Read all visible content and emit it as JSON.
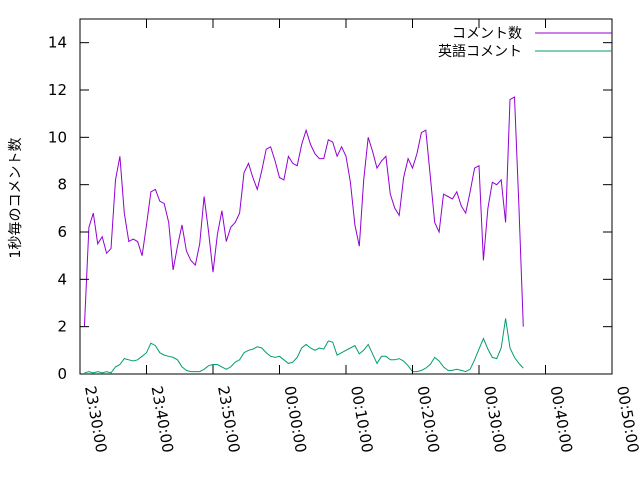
{
  "chart_data": {
    "type": "line",
    "title": "",
    "xlabel": "",
    "ylabel": "1秒毎のコメント数",
    "x_start": "23:30:00",
    "x_end": "00:50:00",
    "x_ticks": [
      "23:30:00",
      "23:40:00",
      "23:50:00",
      "00:00:00",
      "00:10:00",
      "00:20:00",
      "00:30:00",
      "00:40:00",
      "00:50:00"
    ],
    "ylim": [
      0,
      15
    ],
    "y_ticks": [
      0,
      2,
      4,
      6,
      8,
      10,
      12,
      14
    ],
    "grid": false,
    "legend_position": "top-right",
    "series": [
      {
        "name": "コメント数",
        "color": "#9400d3",
        "points": [
          [
            "23:30:40",
            2.0
          ],
          [
            "23:31:20",
            6.2
          ],
          [
            "23:32:00",
            6.8
          ],
          [
            "23:32:40",
            5.5
          ],
          [
            "23:33:20",
            5.8
          ],
          [
            "23:34:00",
            5.1
          ],
          [
            "23:34:40",
            5.3
          ],
          [
            "23:35:20",
            8.2
          ],
          [
            "23:36:00",
            9.2
          ],
          [
            "23:36:40",
            6.8
          ],
          [
            "23:37:20",
            5.6
          ],
          [
            "23:38:00",
            5.7
          ],
          [
            "23:38:40",
            5.6
          ],
          [
            "23:39:20",
            5.0
          ],
          [
            "23:40:00",
            6.3
          ],
          [
            "23:40:40",
            7.7
          ],
          [
            "23:41:20",
            7.8
          ],
          [
            "23:42:00",
            7.3
          ],
          [
            "23:42:40",
            7.2
          ],
          [
            "23:43:20",
            6.4
          ],
          [
            "23:44:00",
            4.4
          ],
          [
            "23:44:40",
            5.4
          ],
          [
            "23:45:20",
            6.3
          ],
          [
            "23:46:00",
            5.2
          ],
          [
            "23:46:40",
            4.8
          ],
          [
            "23:47:20",
            4.6
          ],
          [
            "23:48:00",
            5.5
          ],
          [
            "23:48:40",
            7.5
          ],
          [
            "23:49:20",
            6.0
          ],
          [
            "23:50:00",
            4.3
          ],
          [
            "23:50:40",
            5.9
          ],
          [
            "23:51:20",
            6.9
          ],
          [
            "23:52:00",
            5.6
          ],
          [
            "23:52:40",
            6.2
          ],
          [
            "23:53:20",
            6.4
          ],
          [
            "23:54:00",
            6.8
          ],
          [
            "23:54:40",
            8.5
          ],
          [
            "23:55:20",
            8.9
          ],
          [
            "23:56:00",
            8.3
          ],
          [
            "23:56:40",
            7.8
          ],
          [
            "23:57:20",
            8.6
          ],
          [
            "23:58:00",
            9.5
          ],
          [
            "23:58:40",
            9.6
          ],
          [
            "23:59:20",
            9.0
          ],
          [
            "00:00:00",
            8.3
          ],
          [
            "00:00:40",
            8.2
          ],
          [
            "00:01:20",
            9.2
          ],
          [
            "00:02:00",
            8.9
          ],
          [
            "00:02:40",
            8.8
          ],
          [
            "00:03:20",
            9.7
          ],
          [
            "00:04:00",
            10.3
          ],
          [
            "00:04:40",
            9.7
          ],
          [
            "00:05:20",
            9.3
          ],
          [
            "00:06:00",
            9.1
          ],
          [
            "00:06:40",
            9.1
          ],
          [
            "00:07:20",
            9.9
          ],
          [
            "00:08:00",
            9.8
          ],
          [
            "00:08:40",
            9.2
          ],
          [
            "00:09:20",
            9.6
          ],
          [
            "00:10:00",
            9.2
          ],
          [
            "00:10:40",
            8.1
          ],
          [
            "00:11:20",
            6.3
          ],
          [
            "00:12:00",
            5.4
          ],
          [
            "00:12:40",
            8.2
          ],
          [
            "00:13:20",
            10.0
          ],
          [
            "00:14:00",
            9.4
          ],
          [
            "00:14:40",
            8.7
          ],
          [
            "00:15:20",
            9.0
          ],
          [
            "00:16:00",
            9.2
          ],
          [
            "00:16:40",
            7.6
          ],
          [
            "00:17:20",
            7.0
          ],
          [
            "00:18:00",
            6.7
          ],
          [
            "00:18:40",
            8.3
          ],
          [
            "00:19:20",
            9.1
          ],
          [
            "00:20:00",
            8.7
          ],
          [
            "00:20:40",
            9.3
          ],
          [
            "00:21:20",
            10.2
          ],
          [
            "00:22:00",
            10.3
          ],
          [
            "00:22:40",
            8.4
          ],
          [
            "00:23:20",
            6.4
          ],
          [
            "00:24:00",
            6.0
          ],
          [
            "00:24:40",
            7.6
          ],
          [
            "00:25:20",
            7.5
          ],
          [
            "00:26:00",
            7.4
          ],
          [
            "00:26:40",
            7.7
          ],
          [
            "00:27:20",
            7.1
          ],
          [
            "00:28:00",
            6.8
          ],
          [
            "00:28:40",
            7.7
          ],
          [
            "00:29:20",
            8.7
          ],
          [
            "00:30:00",
            8.8
          ],
          [
            "00:30:40",
            4.8
          ],
          [
            "00:31:20",
            7.0
          ],
          [
            "00:32:00",
            8.1
          ],
          [
            "00:32:40",
            8.0
          ],
          [
            "00:33:20",
            8.2
          ],
          [
            "00:34:00",
            6.4
          ],
          [
            "00:34:40",
            11.6
          ],
          [
            "00:35:20",
            11.7
          ],
          [
            "00:36:00",
            7.1
          ],
          [
            "00:36:40",
            2.0
          ]
        ]
      },
      {
        "name": "英語コメント",
        "color": "#009e73",
        "points": [
          [
            "23:30:40",
            0.05
          ],
          [
            "23:31:20",
            0.1
          ],
          [
            "23:32:00",
            0.05
          ],
          [
            "23:32:40",
            0.1
          ],
          [
            "23:33:20",
            0.05
          ],
          [
            "23:34:00",
            0.1
          ],
          [
            "23:34:40",
            0.05
          ],
          [
            "23:35:20",
            0.3
          ],
          [
            "23:36:00",
            0.4
          ],
          [
            "23:36:40",
            0.65
          ],
          [
            "23:37:20",
            0.6
          ],
          [
            "23:38:00",
            0.55
          ],
          [
            "23:38:40",
            0.6
          ],
          [
            "23:39:20",
            0.75
          ],
          [
            "23:40:00",
            0.9
          ],
          [
            "23:40:40",
            1.3
          ],
          [
            "23:41:20",
            1.2
          ],
          [
            "23:42:00",
            0.9
          ],
          [
            "23:42:40",
            0.8
          ],
          [
            "23:43:20",
            0.75
          ],
          [
            "23:44:00",
            0.7
          ],
          [
            "23:44:40",
            0.6
          ],
          [
            "23:45:20",
            0.3
          ],
          [
            "23:46:00",
            0.15
          ],
          [
            "23:46:40",
            0.1
          ],
          [
            "23:47:20",
            0.1
          ],
          [
            "23:48:00",
            0.1
          ],
          [
            "23:48:40",
            0.2
          ],
          [
            "23:49:20",
            0.35
          ],
          [
            "23:50:00",
            0.4
          ],
          [
            "23:50:40",
            0.4
          ],
          [
            "23:51:20",
            0.3
          ],
          [
            "23:52:00",
            0.2
          ],
          [
            "23:52:40",
            0.3
          ],
          [
            "23:53:20",
            0.5
          ],
          [
            "23:54:00",
            0.6
          ],
          [
            "23:54:40",
            0.9
          ],
          [
            "23:55:20",
            1.0
          ],
          [
            "23:56:00",
            1.05
          ],
          [
            "23:56:40",
            1.15
          ],
          [
            "23:57:20",
            1.1
          ],
          [
            "23:58:00",
            0.9
          ],
          [
            "23:58:40",
            0.75
          ],
          [
            "23:59:20",
            0.7
          ],
          [
            "00:00:00",
            0.75
          ],
          [
            "00:00:40",
            0.6
          ],
          [
            "00:01:20",
            0.45
          ],
          [
            "00:02:00",
            0.5
          ],
          [
            "00:02:40",
            0.7
          ],
          [
            "00:03:20",
            1.1
          ],
          [
            "00:04:00",
            1.25
          ],
          [
            "00:04:40",
            1.1
          ],
          [
            "00:05:20",
            1.0
          ],
          [
            "00:06:00",
            1.1
          ],
          [
            "00:06:40",
            1.05
          ],
          [
            "00:07:20",
            1.4
          ],
          [
            "00:08:00",
            1.35
          ],
          [
            "00:08:40",
            0.8
          ],
          [
            "00:09:20",
            0.9
          ],
          [
            "00:10:00",
            1.0
          ],
          [
            "00:10:40",
            1.1
          ],
          [
            "00:11:20",
            1.2
          ],
          [
            "00:12:00",
            0.85
          ],
          [
            "00:12:40",
            1.0
          ],
          [
            "00:13:20",
            1.25
          ],
          [
            "00:14:00",
            0.85
          ],
          [
            "00:14:40",
            0.45
          ],
          [
            "00:15:20",
            0.75
          ],
          [
            "00:16:00",
            0.75
          ],
          [
            "00:16:40",
            0.6
          ],
          [
            "00:17:20",
            0.6
          ],
          [
            "00:18:00",
            0.65
          ],
          [
            "00:18:40",
            0.55
          ],
          [
            "00:19:20",
            0.35
          ],
          [
            "00:20:00",
            0.1
          ],
          [
            "00:20:40",
            0.1
          ],
          [
            "00:21:20",
            0.15
          ],
          [
            "00:22:00",
            0.25
          ],
          [
            "00:22:40",
            0.4
          ],
          [
            "00:23:20",
            0.7
          ],
          [
            "00:24:00",
            0.55
          ],
          [
            "00:24:40",
            0.3
          ],
          [
            "00:25:20",
            0.15
          ],
          [
            "00:26:00",
            0.15
          ],
          [
            "00:26:40",
            0.2
          ],
          [
            "00:27:20",
            0.15
          ],
          [
            "00:28:00",
            0.1
          ],
          [
            "00:28:40",
            0.2
          ],
          [
            "00:29:20",
            0.6
          ],
          [
            "00:30:00",
            1.05
          ],
          [
            "00:30:40",
            1.5
          ],
          [
            "00:31:20",
            1.05
          ],
          [
            "00:32:00",
            0.7
          ],
          [
            "00:32:40",
            0.65
          ],
          [
            "00:33:20",
            1.1
          ],
          [
            "00:34:00",
            2.35
          ],
          [
            "00:34:40",
            1.1
          ],
          [
            "00:35:20",
            0.7
          ],
          [
            "00:36:00",
            0.45
          ],
          [
            "00:36:40",
            0.25
          ]
        ]
      }
    ]
  }
}
